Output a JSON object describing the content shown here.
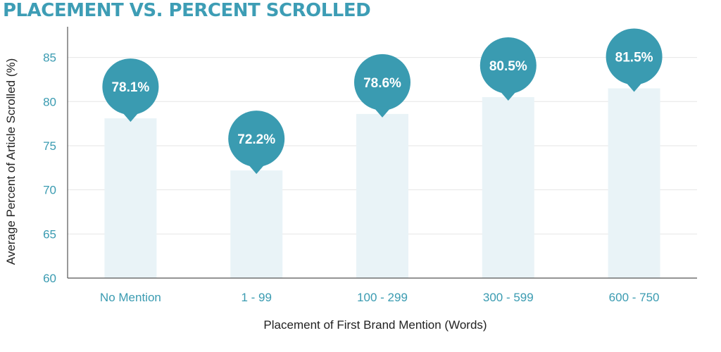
{
  "colors": {
    "accent": "#3a9bb1",
    "bar_fill": "#e9f3f7",
    "gridline": "#e6e6e6",
    "axis_line": "#555555",
    "tick_text": "#3a9bb1",
    "label_text": "#222222"
  },
  "chart_data": {
    "type": "bar",
    "title": "PLACEMENT VS. PERCENT SCROLLED",
    "xlabel": "Placement of First Brand Mention (Words)",
    "ylabel": "Average Percent of Article Scrolled (%)",
    "categories": [
      "No Mention",
      "1 - 99",
      "100 - 299",
      "300 - 599",
      "600 - 750"
    ],
    "values": [
      78.1,
      72.2,
      78.6,
      80.5,
      81.5
    ],
    "value_labels": [
      "78.1%",
      "72.2%",
      "78.6%",
      "80.5%",
      "81.5%"
    ],
    "ylim": [
      60,
      88
    ],
    "yticks": [
      "60",
      "65",
      "70",
      "75",
      "80",
      "85"
    ],
    "grid": true,
    "legend": "none"
  }
}
